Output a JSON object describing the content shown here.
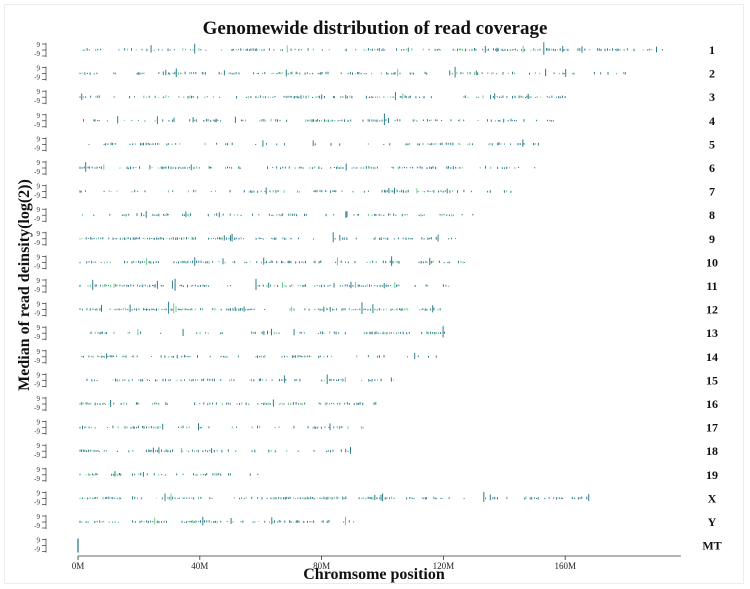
{
  "chart_data": {
    "type": "scatter",
    "title": "Genomewide distribution of read coverage",
    "xlabel": "Chromsome position",
    "ylabel": "Median of read deinsity(log(2))",
    "x_unit_million": true,
    "xlim": [
      0,
      200
    ],
    "x_ticks": [
      0,
      40,
      80,
      120,
      160
    ],
    "x_tick_labels": [
      "0M",
      "40M",
      "80M",
      "120M",
      "160M"
    ],
    "track_y_ticks": [
      "9",
      "-9"
    ],
    "track_y_range": [
      -9,
      9
    ],
    "color_primary": "#2e7d8c",
    "color_secondary": "#6ecf8a",
    "grid": false,
    "legend": "none",
    "chromosomes": [
      {
        "name": "1",
        "length": 195
      },
      {
        "name": "2",
        "length": 182
      },
      {
        "name": "3",
        "length": 160
      },
      {
        "name": "4",
        "length": 157
      },
      {
        "name": "5",
        "length": 152
      },
      {
        "name": "6",
        "length": 150
      },
      {
        "name": "7",
        "length": 145
      },
      {
        "name": "8",
        "length": 130
      },
      {
        "name": "9",
        "length": 124
      },
      {
        "name": "10",
        "length": 131
      },
      {
        "name": "11",
        "length": 122
      },
      {
        "name": "12",
        "length": 121
      },
      {
        "name": "13",
        "length": 121
      },
      {
        "name": "14",
        "length": 125
      },
      {
        "name": "15",
        "length": 104
      },
      {
        "name": "16",
        "length": 98
      },
      {
        "name": "17",
        "length": 95
      },
      {
        "name": "18",
        "length": 91
      },
      {
        "name": "19",
        "length": 61
      },
      {
        "name": "X",
        "length": 171
      },
      {
        "name": "Y",
        "length": 91
      },
      {
        "name": "MT",
        "length": 0.02
      }
    ]
  }
}
